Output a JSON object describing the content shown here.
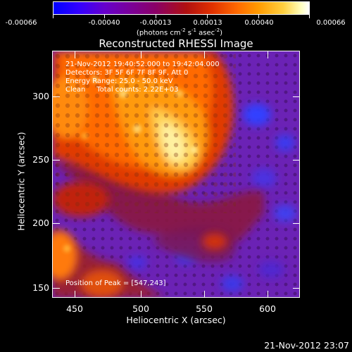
{
  "colorbar": {
    "labels": [
      "-0.00066",
      "-0.00040",
      "-0.00013",
      "0.00013",
      "0.00040",
      "0.00066"
    ],
    "units": "(photons cm",
    "units_sup1": "-2",
    "units_s": " s",
    "units_sup2": "-1",
    "units_asec": " asec",
    "units_sup3": "-2",
    "units_close": ")"
  },
  "image": {
    "title": "Reconstructed RHESSI Image",
    "info_lines": [
      "21-Nov-2012 19:40:52.000 to 19:42:04.000",
      "Detectors: 3F 5F 6F 7F 8F 9F, Att 0",
      "Energy Range: 25.0 - 50.0 keV",
      "Clean     Total counts: 2.22E+03"
    ],
    "peak_text": "Position of Peak = [547,243]"
  },
  "axes": {
    "xlabel": "Heliocentric X (arcsec)",
    "ylabel": "Heliocentric Y (arcsec)",
    "x_ticks": [
      "450",
      "500",
      "550",
      "600"
    ],
    "y_ticks": [
      "150",
      "200",
      "250",
      "300"
    ]
  },
  "footer": {
    "timestamp": "21-Nov-2012 23:07"
  },
  "colors": {
    "background": "#000000",
    "foreground": "#ffffff"
  }
}
